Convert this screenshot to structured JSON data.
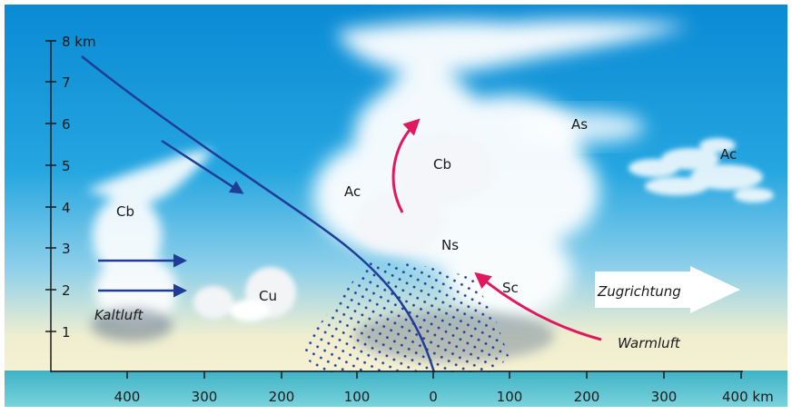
{
  "diagram": {
    "y_axis": {
      "unit_label": "8 km",
      "ticks": [
        "1",
        "2",
        "3",
        "4",
        "5",
        "6",
        "7"
      ]
    },
    "x_axis": {
      "ticks": [
        "400",
        "300",
        "200",
        "100",
        "0",
        "100",
        "200",
        "300"
      ],
      "last_tick": "400 km"
    },
    "labels": {
      "cb_left": "Cb",
      "cb_main": "Cb",
      "cu": "Cu",
      "ac_left": "Ac",
      "ac_right": "Ac",
      "as": "As",
      "ns": "Ns",
      "sc": "Sc",
      "kaltluft": "Kaltluft",
      "warmluft": "Warmluft",
      "zugrichtung": "Zugrichtung"
    },
    "colors": {
      "sky_top": "#0a8fd6",
      "sky_bottom": "#f3efcf",
      "ground": "#5cc0cf",
      "front_line": "#1f3d96",
      "warm_arrow": "#e0195f",
      "axis": "#1a1a1a"
    }
  }
}
